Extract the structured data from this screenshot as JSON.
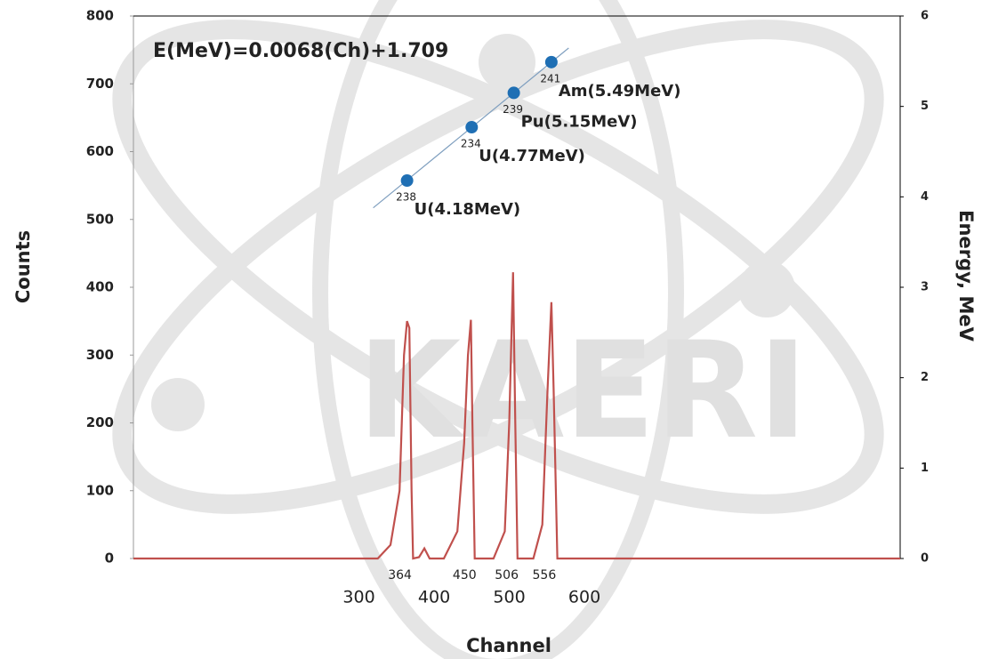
{
  "chart_data": {
    "type": "line",
    "y_label": "Counts",
    "y2_label": "Energy, MeV",
    "x_label": "Channel",
    "annotation": "E(MeV)=0.0068(Ch)+1.709",
    "watermark": "KAERI",
    "xlim": [
      0,
      1020
    ],
    "xticks": [
      300,
      400,
      500,
      600
    ],
    "ylim": [
      0,
      800
    ],
    "yticks": [
      0,
      100,
      200,
      300,
      400,
      500,
      600,
      700,
      800
    ],
    "y2lim": [
      0,
      6
    ],
    "y2ticks": [
      0,
      1,
      2,
      3,
      4,
      5,
      6
    ],
    "peak_labels": [
      364,
      450,
      506,
      556
    ],
    "series": [
      {
        "style": "line",
        "color": "#c0504d",
        "axis": "y",
        "x": [
          0,
          325,
          342,
          354,
          360,
          364,
          367,
          370,
          372,
          380,
          387,
          394,
          413,
          431,
          440,
          445,
          449,
          451,
          454,
          479,
          494,
          500,
          505,
          508,
          511,
          532,
          544,
          551,
          556,
          559,
          564,
          1020
        ],
        "values": [
          0,
          0,
          20,
          100,
          300,
          350,
          340,
          100,
          0,
          2,
          15,
          0,
          0,
          40,
          170,
          300,
          352,
          200,
          0,
          0,
          40,
          200,
          422,
          200,
          0,
          0,
          50,
          250,
          378,
          250,
          0,
          0
        ]
      },
      {
        "style": "line",
        "color": "#7f9fbf",
        "axis": "y2",
        "x": [
          319,
          579
        ],
        "values": [
          3.878,
          5.646
        ]
      },
      {
        "style": "markers",
        "color": "#1f6fb4",
        "axis": "y2",
        "x": [
          364,
          450,
          506,
          556
        ],
        "values": [
          4.18,
          4.77,
          5.15,
          5.49
        ],
        "mass_numbers": [
          "238",
          "234",
          "239",
          "241"
        ],
        "labels": [
          "U(4.18MeV)",
          "U(4.77MeV)",
          "Pu(5.15MeV)",
          "Am(5.49MeV)"
        ]
      }
    ]
  }
}
